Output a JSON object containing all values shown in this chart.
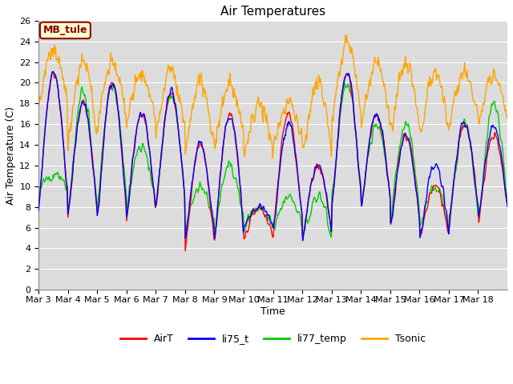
{
  "title": "Air Temperatures",
  "xlabel": "Time",
  "ylabel": "Air Temperature (C)",
  "ylim": [
    0,
    26
  ],
  "yticks": [
    0,
    2,
    4,
    6,
    8,
    10,
    12,
    14,
    16,
    18,
    20,
    22,
    24,
    26
  ],
  "xtick_labels": [
    "Mar 3",
    "Mar 4",
    "Mar 5",
    "Mar 6",
    "Mar 7",
    "Mar 8",
    "Mar 9",
    "Mar 10",
    "Mar 11",
    "Mar 12",
    "Mar 13",
    "Mar 14",
    "Mar 15",
    "Mar 16",
    "Mar 17",
    "Mar 18"
  ],
  "colors": {
    "AirT": "#FF0000",
    "li75_t": "#0000FF",
    "li77_temp": "#00CC00",
    "Tsonic": "#FFA500"
  },
  "annotation_text": "MB_tule",
  "annotation_bg": "#FFFFCC",
  "annotation_border": "#8B0000",
  "plot_bg": "#DCDCDC",
  "grid_color": "#FFFFFF",
  "title_fontsize": 11,
  "axis_label_fontsize": 9,
  "tick_fontsize": 8,
  "legend_fontsize": 9,
  "annotation_fontsize": 9,
  "line_width": 1.0,
  "airt_peaks": [
    21,
    18,
    20,
    17,
    19,
    14,
    17,
    8,
    17,
    12,
    21,
    17,
    15,
    10,
    16,
    15
  ],
  "airt_troughs": [
    8,
    7,
    7,
    7,
    8,
    4,
    5,
    5,
    6,
    5,
    8,
    8,
    6,
    5,
    7,
    7
  ],
  "li75_peaks": [
    21,
    18,
    20,
    17,
    19,
    14,
    17,
    8,
    16,
    12,
    21,
    17,
    15,
    12,
    16,
    16
  ],
  "li75_troughs": [
    8,
    7,
    7,
    7,
    8,
    5,
    5,
    6,
    6,
    5,
    8,
    8,
    6,
    5,
    7,
    7
  ],
  "li77_peaks": [
    11,
    19,
    20,
    14,
    19,
    10,
    12,
    8,
    9,
    9,
    20,
    16,
    16,
    10,
    16,
    18
  ],
  "li77_troughs": [
    10,
    7,
    8,
    8,
    8,
    6,
    6,
    6,
    6,
    5,
    9,
    8,
    7,
    6,
    6,
    7
  ],
  "tsonic_peaks": [
    23,
    22,
    22,
    21,
    21,
    20,
    20,
    18,
    18,
    20,
    24,
    22,
    22,
    21,
    21,
    21
  ],
  "tsonic_troughs": [
    18,
    14,
    16,
    16,
    15,
    13,
    14,
    13,
    14,
    13,
    16,
    16,
    15,
    15,
    16,
    16
  ]
}
